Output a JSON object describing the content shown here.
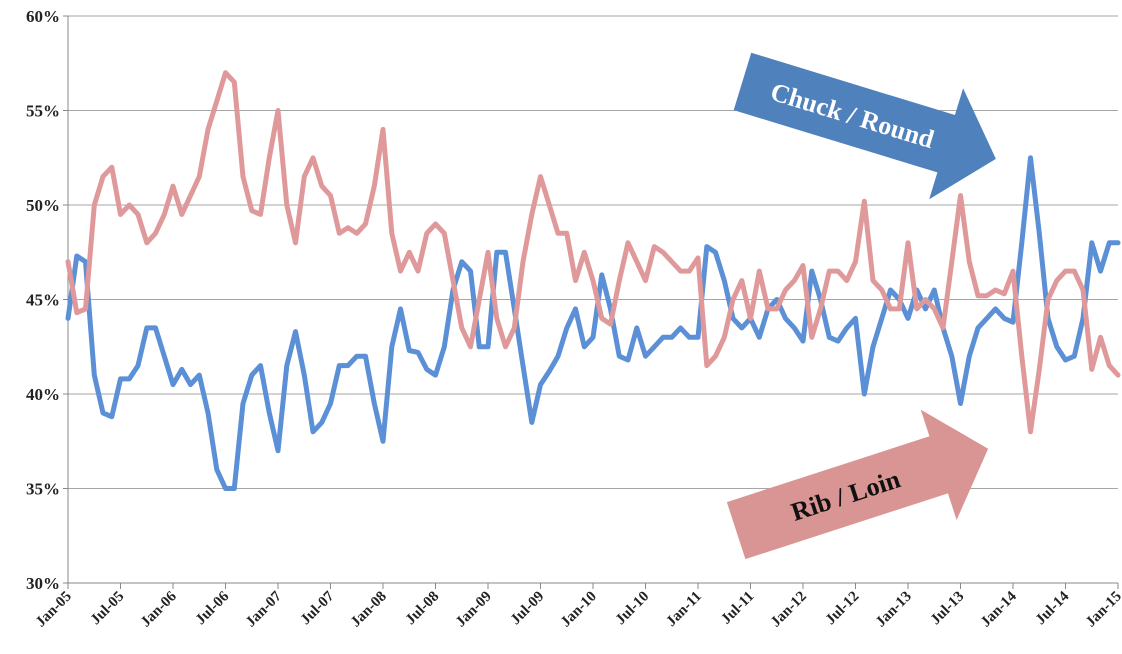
{
  "chart_data": {
    "type": "line",
    "categories": [
      "Jan-05",
      null,
      null,
      null,
      null,
      null,
      "Jul-05",
      null,
      null,
      null,
      null,
      null,
      "Jan-06",
      null,
      null,
      null,
      null,
      null,
      "Jul-06",
      null,
      null,
      null,
      null,
      null,
      "Jan-07",
      null,
      null,
      null,
      null,
      null,
      "Jul-07",
      null,
      null,
      null,
      null,
      null,
      "Jan-08",
      null,
      null,
      null,
      null,
      null,
      "Jul-08",
      null,
      null,
      null,
      null,
      null,
      "Jan-09",
      null,
      null,
      null,
      null,
      null,
      "Jul-09",
      null,
      null,
      null,
      null,
      null,
      "Jan-10",
      null,
      null,
      null,
      null,
      null,
      "Jul-10",
      null,
      null,
      null,
      null,
      null,
      "Jan-11",
      null,
      null,
      null,
      null,
      null,
      "Jul-11",
      null,
      null,
      null,
      null,
      null,
      "Jan-12",
      null,
      null,
      null,
      null,
      null,
      "Jul-12",
      null,
      null,
      null,
      null,
      null,
      "Jan-13",
      null,
      null,
      null,
      null,
      null,
      "Jul-13",
      null,
      null,
      null,
      null,
      null,
      "Jan-14",
      null,
      null,
      null,
      null,
      null,
      "Jul-14",
      null,
      null,
      null,
      null,
      null,
      "Jan-15"
    ],
    "series": [
      {
        "name": "Chuck / Round",
        "color": "#5b8fd6",
        "values": [
          44,
          47.3,
          47,
          41,
          39,
          38.8,
          40.8,
          40.8,
          41.5,
          43.5,
          43.5,
          42,
          40.5,
          41.3,
          40.5,
          41,
          39,
          36,
          35,
          35,
          39.5,
          41,
          41.5,
          39,
          37,
          41.5,
          43.3,
          41,
          38,
          38.5,
          39.5,
          41.5,
          41.5,
          42,
          42,
          39.5,
          37.5,
          42.5,
          44.5,
          42.3,
          42.2,
          41.3,
          41,
          42.5,
          45.5,
          47,
          46.5,
          42.5,
          42.5,
          47.5,
          47.5,
          44.5,
          41.5,
          38.5,
          40.5,
          41.2,
          42,
          43.5,
          44.5,
          42.5,
          43,
          46.3,
          44.5,
          42,
          41.8,
          43.5,
          42,
          42.5,
          43,
          43,
          43.5,
          43,
          43,
          47.8,
          47.5,
          46,
          44,
          43.5,
          44,
          43,
          44.5,
          45,
          44,
          43.5,
          42.8,
          46.5,
          45,
          43,
          42.8,
          43.5,
          44,
          40,
          42.5,
          44,
          45.5,
          45,
          44,
          45.5,
          44.5,
          45.5,
          43.5,
          42,
          39.5,
          42,
          43.5,
          44,
          44.5,
          44,
          43.8,
          48,
          52.5,
          48.5,
          44,
          42.5,
          41.8,
          42,
          44,
          48,
          46.5,
          48,
          48
        ]
      },
      {
        "name": "Rib / Loin",
        "color": "#e0999a",
        "values": [
          47,
          44.3,
          44.5,
          50,
          51.5,
          52,
          49.5,
          50,
          49.5,
          48,
          48.5,
          49.5,
          51,
          49.5,
          50.5,
          51.5,
          54,
          55.5,
          57,
          56.5,
          51.5,
          49.7,
          49.5,
          52.5,
          55,
          50,
          48,
          51.5,
          52.5,
          51,
          50.5,
          48.5,
          48.8,
          48.5,
          49,
          51,
          54,
          48.5,
          46.5,
          47.5,
          46.5,
          48.5,
          49,
          48.5,
          46,
          43.5,
          42.5,
          45,
          47.5,
          44,
          42.5,
          43.5,
          47,
          49.5,
          51.5,
          50,
          48.5,
          48.5,
          46,
          47.5,
          46,
          44,
          43.7,
          46,
          48,
          47,
          46,
          47.8,
          47.5,
          47,
          46.5,
          46.5,
          47.2,
          41.5,
          42,
          43,
          45,
          46,
          44,
          46.5,
          44.5,
          44.5,
          45.5,
          46,
          46.8,
          43,
          44.5,
          46.5,
          46.5,
          46,
          47,
          50.2,
          46,
          45.5,
          44.5,
          44.5,
          48,
          44.5,
          45,
          44.5,
          43.5,
          47,
          50.5,
          47,
          45.2,
          45.2,
          45.5,
          45.3,
          46.5,
          42,
          38,
          41.3,
          45,
          46,
          46.5,
          46.5,
          45.5,
          41.3,
          43,
          41.5,
          41
        ]
      }
    ],
    "ylim": [
      30,
      60
    ],
    "yticks": [
      {
        "value": 30,
        "label": "30%"
      },
      {
        "value": 35,
        "label": "35%"
      },
      {
        "value": 40,
        "label": "40%"
      },
      {
        "value": 45,
        "label": "45%"
      },
      {
        "value": 50,
        "label": "50%"
      },
      {
        "value": 55,
        "label": "55%"
      },
      {
        "value": 60,
        "label": "60%"
      }
    ],
    "grid": true
  }
}
